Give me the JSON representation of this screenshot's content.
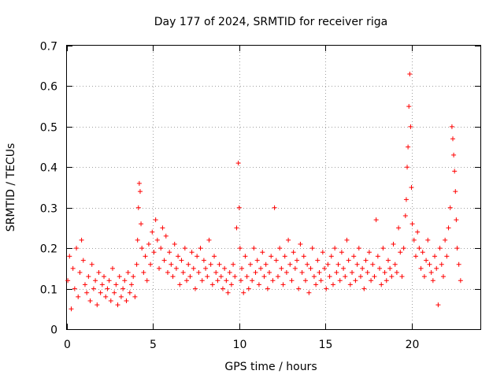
{
  "chart_data": {
    "type": "scatter",
    "title": "Day 177 of 2024, SRMTID for receiver riga",
    "xlabel": "GPS time / hours",
    "ylabel": "SRMTID / TECUs",
    "xlim": [
      0,
      24
    ],
    "ylim": [
      0,
      0.7
    ],
    "xticks": [
      0,
      5,
      10,
      15,
      20
    ],
    "xtick_labels": [
      "0",
      "5",
      "10",
      "15",
      "20"
    ],
    "yticks": [
      0,
      0.1,
      0.2,
      0.3,
      0.4,
      0.5,
      0.6,
      0.7
    ],
    "ytick_labels": [
      "0",
      "0.1",
      "0.2",
      "0.3",
      "0.4",
      "0.5",
      "0.6",
      "0.7"
    ],
    "grid": true,
    "marker": "+",
    "series_color": "#ff0000",
    "series": [
      {
        "name": "SRMTID",
        "x": [
          0.05,
          0.15,
          0.25,
          0.35,
          0.45,
          0.55,
          0.65,
          0.75,
          0.85,
          0.95,
          1.05,
          1.15,
          1.25,
          1.35,
          1.45,
          1.55,
          1.65,
          1.75,
          1.85,
          1.95,
          2.05,
          2.15,
          2.25,
          2.35,
          2.45,
          2.55,
          2.65,
          2.75,
          2.85,
          2.95,
          3.05,
          3.15,
          3.25,
          3.35,
          3.45,
          3.55,
          3.65,
          3.75,
          3.85,
          3.95,
          4.05,
          4.1,
          4.15,
          4.2,
          4.25,
          4.3,
          4.35,
          4.45,
          4.55,
          4.65,
          4.75,
          4.85,
          4.95,
          5.05,
          5.15,
          5.25,
          5.35,
          5.45,
          5.55,
          5.65,
          5.75,
          5.85,
          5.95,
          6.05,
          6.15,
          6.25,
          6.35,
          6.45,
          6.55,
          6.65,
          6.75,
          6.85,
          6.95,
          7.05,
          7.15,
          7.25,
          7.35,
          7.45,
          7.55,
          7.65,
          7.75,
          7.85,
          7.95,
          8.05,
          8.15,
          8.25,
          8.35,
          8.45,
          8.55,
          8.65,
          8.75,
          8.85,
          8.95,
          9.05,
          9.15,
          9.25,
          9.35,
          9.45,
          9.55,
          9.65,
          9.75,
          9.85,
          9.95,
          10.0,
          10.05,
          10.1,
          10.15,
          10.25,
          10.35,
          10.45,
          10.55,
          10.65,
          10.75,
          10.85,
          10.95,
          11.05,
          11.15,
          11.25,
          11.35,
          11.45,
          11.55,
          11.65,
          11.75,
          11.85,
          11.95,
          12.05,
          12.15,
          12.25,
          12.35,
          12.45,
          12.55,
          12.65,
          12.75,
          12.85,
          12.95,
          13.05,
          13.15,
          13.25,
          13.35,
          13.45,
          13.55,
          13.65,
          13.75,
          13.85,
          13.95,
          14.05,
          14.15,
          14.25,
          14.35,
          14.45,
          14.55,
          14.65,
          14.75,
          14.85,
          14.95,
          15.05,
          15.15,
          15.25,
          15.35,
          15.45,
          15.55,
          15.65,
          15.75,
          15.85,
          15.95,
          16.05,
          16.15,
          16.25,
          16.35,
          16.45,
          16.55,
          16.65,
          16.75,
          16.85,
          16.95,
          17.05,
          17.15,
          17.25,
          17.35,
          17.45,
          17.55,
          17.65,
          17.75,
          17.85,
          17.95,
          18.05,
          18.15,
          18.25,
          18.35,
          18.45,
          18.55,
          18.65,
          18.75,
          18.85,
          18.95,
          19.05,
          19.15,
          19.25,
          19.35,
          19.45,
          19.55,
          19.65,
          19.7,
          19.75,
          19.8,
          19.85,
          19.9,
          19.95,
          20.0,
          20.05,
          20.15,
          20.25,
          20.35,
          20.45,
          20.55,
          20.65,
          20.75,
          20.85,
          20.95,
          21.05,
          21.15,
          21.25,
          21.35,
          21.45,
          21.55,
          21.65,
          21.75,
          21.85,
          21.95,
          22.05,
          22.15,
          22.25,
          22.35,
          22.4,
          22.45,
          22.5,
          22.55,
          22.6,
          22.65,
          22.75,
          22.85
        ],
        "y": [
          0.12,
          0.18,
          0.05,
          0.15,
          0.1,
          0.2,
          0.08,
          0.14,
          0.22,
          0.17,
          0.11,
          0.09,
          0.13,
          0.07,
          0.16,
          0.1,
          0.12,
          0.06,
          0.14,
          0.09,
          0.11,
          0.13,
          0.08,
          0.1,
          0.12,
          0.07,
          0.15,
          0.09,
          0.11,
          0.06,
          0.13,
          0.08,
          0.1,
          0.12,
          0.07,
          0.14,
          0.09,
          0.11,
          0.13,
          0.08,
          0.16,
          0.22,
          0.3,
          0.36,
          0.34,
          0.26,
          0.2,
          0.14,
          0.18,
          0.12,
          0.21,
          0.16,
          0.24,
          0.19,
          0.27,
          0.22,
          0.15,
          0.2,
          0.25,
          0.17,
          0.23,
          0.14,
          0.19,
          0.16,
          0.13,
          0.21,
          0.15,
          0.18,
          0.11,
          0.17,
          0.14,
          0.2,
          0.12,
          0.16,
          0.13,
          0.19,
          0.15,
          0.1,
          0.18,
          0.14,
          0.2,
          0.12,
          0.17,
          0.15,
          0.13,
          0.22,
          0.16,
          0.11,
          0.18,
          0.14,
          0.12,
          0.16,
          0.13,
          0.1,
          0.15,
          0.12,
          0.09,
          0.14,
          0.11,
          0.16,
          0.13,
          0.25,
          0.41,
          0.3,
          0.2,
          0.12,
          0.15,
          0.09,
          0.18,
          0.13,
          0.1,
          0.16,
          0.12,
          0.2,
          0.14,
          0.17,
          0.11,
          0.15,
          0.19,
          0.13,
          0.16,
          0.1,
          0.14,
          0.18,
          0.12,
          0.3,
          0.17,
          0.13,
          0.2,
          0.15,
          0.11,
          0.18,
          0.14,
          0.22,
          0.16,
          0.12,
          0.19,
          0.15,
          0.17,
          0.1,
          0.21,
          0.14,
          0.18,
          0.12,
          0.16,
          0.09,
          0.15,
          0.2,
          0.13,
          0.11,
          0.17,
          0.14,
          0.12,
          0.19,
          0.15,
          0.1,
          0.16,
          0.13,
          0.18,
          0.11,
          0.2,
          0.14,
          0.16,
          0.12,
          0.19,
          0.15,
          0.13,
          0.22,
          0.17,
          0.11,
          0.14,
          0.18,
          0.12,
          0.16,
          0.2,
          0.13,
          0.15,
          0.1,
          0.17,
          0.14,
          0.19,
          0.12,
          0.16,
          0.13,
          0.27,
          0.18,
          0.15,
          0.11,
          0.2,
          0.14,
          0.12,
          0.17,
          0.15,
          0.13,
          0.21,
          0.16,
          0.14,
          0.25,
          0.19,
          0.13,
          0.2,
          0.28,
          0.32,
          0.4,
          0.45,
          0.55,
          0.63,
          0.5,
          0.35,
          0.26,
          0.22,
          0.18,
          0.24,
          0.2,
          0.15,
          0.19,
          0.13,
          0.17,
          0.22,
          0.16,
          0.14,
          0.12,
          0.18,
          0.15,
          0.06,
          0.2,
          0.16,
          0.13,
          0.22,
          0.18,
          0.25,
          0.3,
          0.5,
          0.47,
          0.43,
          0.39,
          0.34,
          0.27,
          0.2,
          0.16,
          0.12
        ]
      }
    ]
  }
}
